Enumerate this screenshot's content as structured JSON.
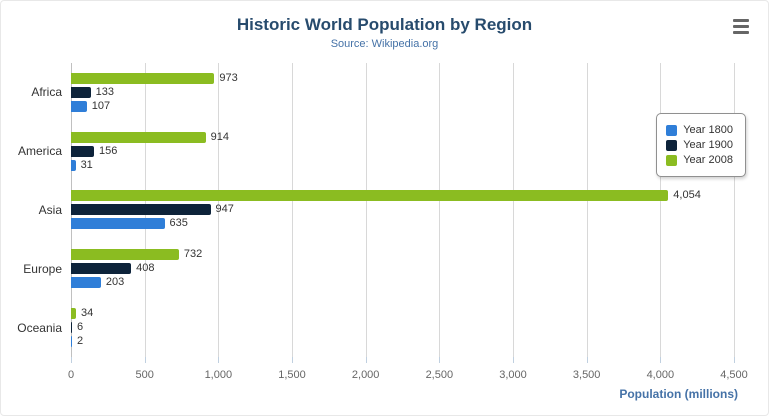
{
  "header": {
    "title": "Historic World Population by Region",
    "subtitle": "Source: Wikipedia.org"
  },
  "chart_data": {
    "type": "bar",
    "orientation": "horizontal",
    "title": "Historic World Population by Region",
    "subtitle": "Source: Wikipedia.org",
    "categories": [
      "Africa",
      "America",
      "Asia",
      "Europe",
      "Oceania"
    ],
    "series": [
      {
        "name": "Year 1800",
        "color": "#2f7ed8",
        "values": [
          107,
          31,
          635,
          203,
          2
        ]
      },
      {
        "name": "Year 1900",
        "color": "#0d233a",
        "values": [
          133,
          156,
          947,
          408,
          6
        ]
      },
      {
        "name": "Year 2008",
        "color": "#8bbc21",
        "values": [
          973,
          914,
          4054,
          732,
          34
        ]
      }
    ],
    "display_order_top_to_bottom": [
      "Year 2008",
      "Year 1900",
      "Year 1800"
    ],
    "xlabel": "Population (millions)",
    "xlim": [
      0,
      4500
    ],
    "xticks": [
      0,
      500,
      1000,
      1500,
      2000,
      2500,
      3000,
      3500,
      4000,
      4500
    ],
    "grid": true,
    "legend_position": "right"
  }
}
